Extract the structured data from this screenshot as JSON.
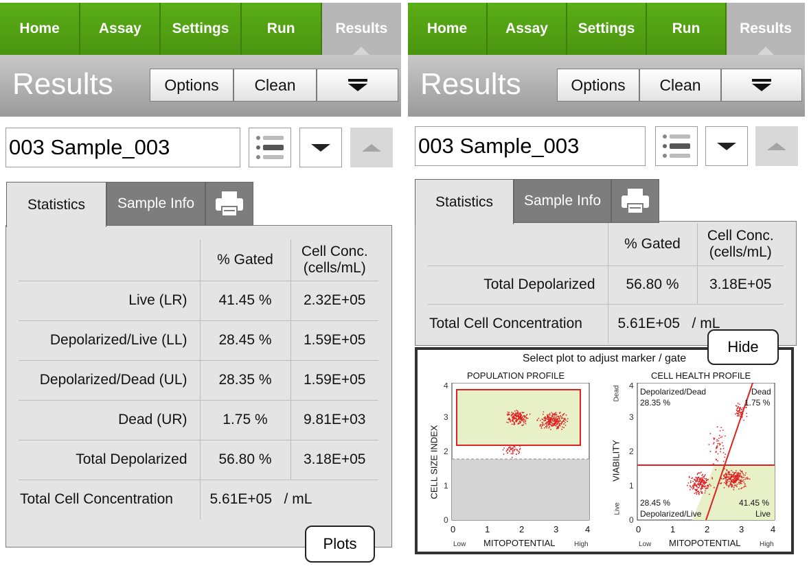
{
  "colors": {
    "nav_green": "#4f9a12",
    "active_tab": "#b7b7b7",
    "gate_red": "#e02020",
    "gate_fill": "#e8f0c8"
  },
  "nav": [
    "Home",
    "Assay",
    "Settings",
    "Run",
    "Results"
  ],
  "header": {
    "title": "Results",
    "options": "Options",
    "clean": "Clean",
    "menu_icon": "menu-down-icon"
  },
  "sample": {
    "name": "003 Sample_003"
  },
  "tabs": {
    "statistics": "Statistics",
    "sample_info": "Sample Info",
    "print_icon": "printer-icon"
  },
  "stats_header": {
    "gated": "% Gated",
    "conc_line1": "Cell Conc.",
    "conc_line2": "(cells/mL)"
  },
  "left": {
    "rows": [
      {
        "label": "Live (LR)",
        "gated": "41.45 %",
        "conc": "2.32E+05"
      },
      {
        "label": "Depolarized/Live (LL)",
        "gated": "28.45 %",
        "conc": "1.59E+05"
      },
      {
        "label": "Depolarized/Dead (UL)",
        "gated": "28.35 %",
        "conc": "1.59E+05"
      },
      {
        "label": "Dead (UR)",
        "gated": "1.75 %",
        "conc": "9.81E+03"
      },
      {
        "label": "Total Depolarized",
        "gated": "56.80 %",
        "conc": "3.18E+05"
      }
    ],
    "total": {
      "label": "Total Cell Concentration",
      "value": "5.61E+05",
      "unit": "/ mL"
    },
    "plots_button": "Plots"
  },
  "right": {
    "rows": [
      {
        "label": "Total Depolarized",
        "gated": "56.80 %",
        "conc": "3.18E+05"
      }
    ],
    "total": {
      "label": "Total Cell Concentration",
      "value": "5.61E+05",
      "unit": "/ mL"
    },
    "hide_button": "Hide",
    "plots_caption": "Select plot to adjust marker / gate",
    "population": {
      "title": "POPULATION PROFILE",
      "ylabel": "CELL SIZE INDEX",
      "xlabel": "MITOPOTENTIAL",
      "xlow": "Low",
      "xhigh": "High",
      "ticks": [
        "0",
        "1",
        "2",
        "3",
        "4"
      ]
    },
    "health": {
      "title": "CELL HEALTH PROFILE",
      "ylabel": "VIABILITY",
      "xlabel": "MITOPOTENTIAL",
      "xlow": "Low",
      "xhigh": "High",
      "ydead": "Dead",
      "ylive": "Live",
      "ticks": [
        "0",
        "1",
        "2",
        "3",
        "4"
      ],
      "ul_name": "Depolarized/Dead",
      "ul_pct": "28.35 %",
      "ur_name": "Dead",
      "ur_pct": "1.75 %",
      "ll_name": "Depolarized/Live",
      "ll_pct": "28.45 %",
      "lr_name": "Live",
      "lr_pct": "41.45 %"
    }
  }
}
